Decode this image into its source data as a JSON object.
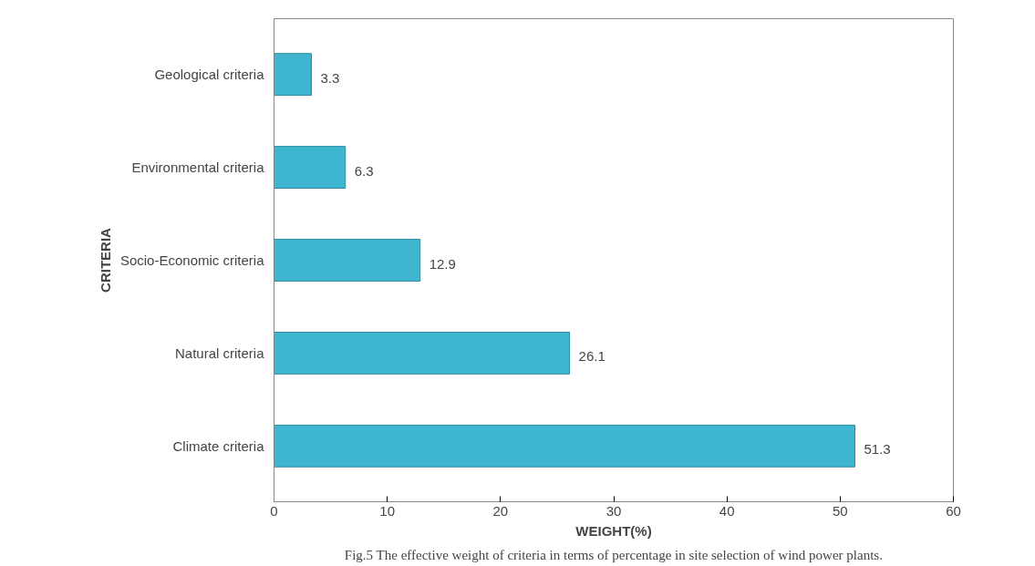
{
  "chart_data": {
    "type": "bar",
    "orientation": "horizontal",
    "categories": [
      "Geological criteria",
      "Environmental criteria",
      "Socio-Economic criteria",
      "Natural criteria",
      "Climate criteria"
    ],
    "values": [
      3.3,
      6.3,
      12.9,
      26.1,
      51.3
    ],
    "color": "#3fb6d0",
    "xlim": [
      0,
      60
    ],
    "xticks": [
      0,
      10,
      20,
      30,
      40,
      50,
      60
    ],
    "grid": false,
    "data_labels": true,
    "xlabel": "WEIGHT(%)",
    "ylabel": "CRITERIA",
    "annotations": [
      "Fig.5 The effective weight of criteria in terms of percentage in site selection of wind power plants."
    ]
  }
}
